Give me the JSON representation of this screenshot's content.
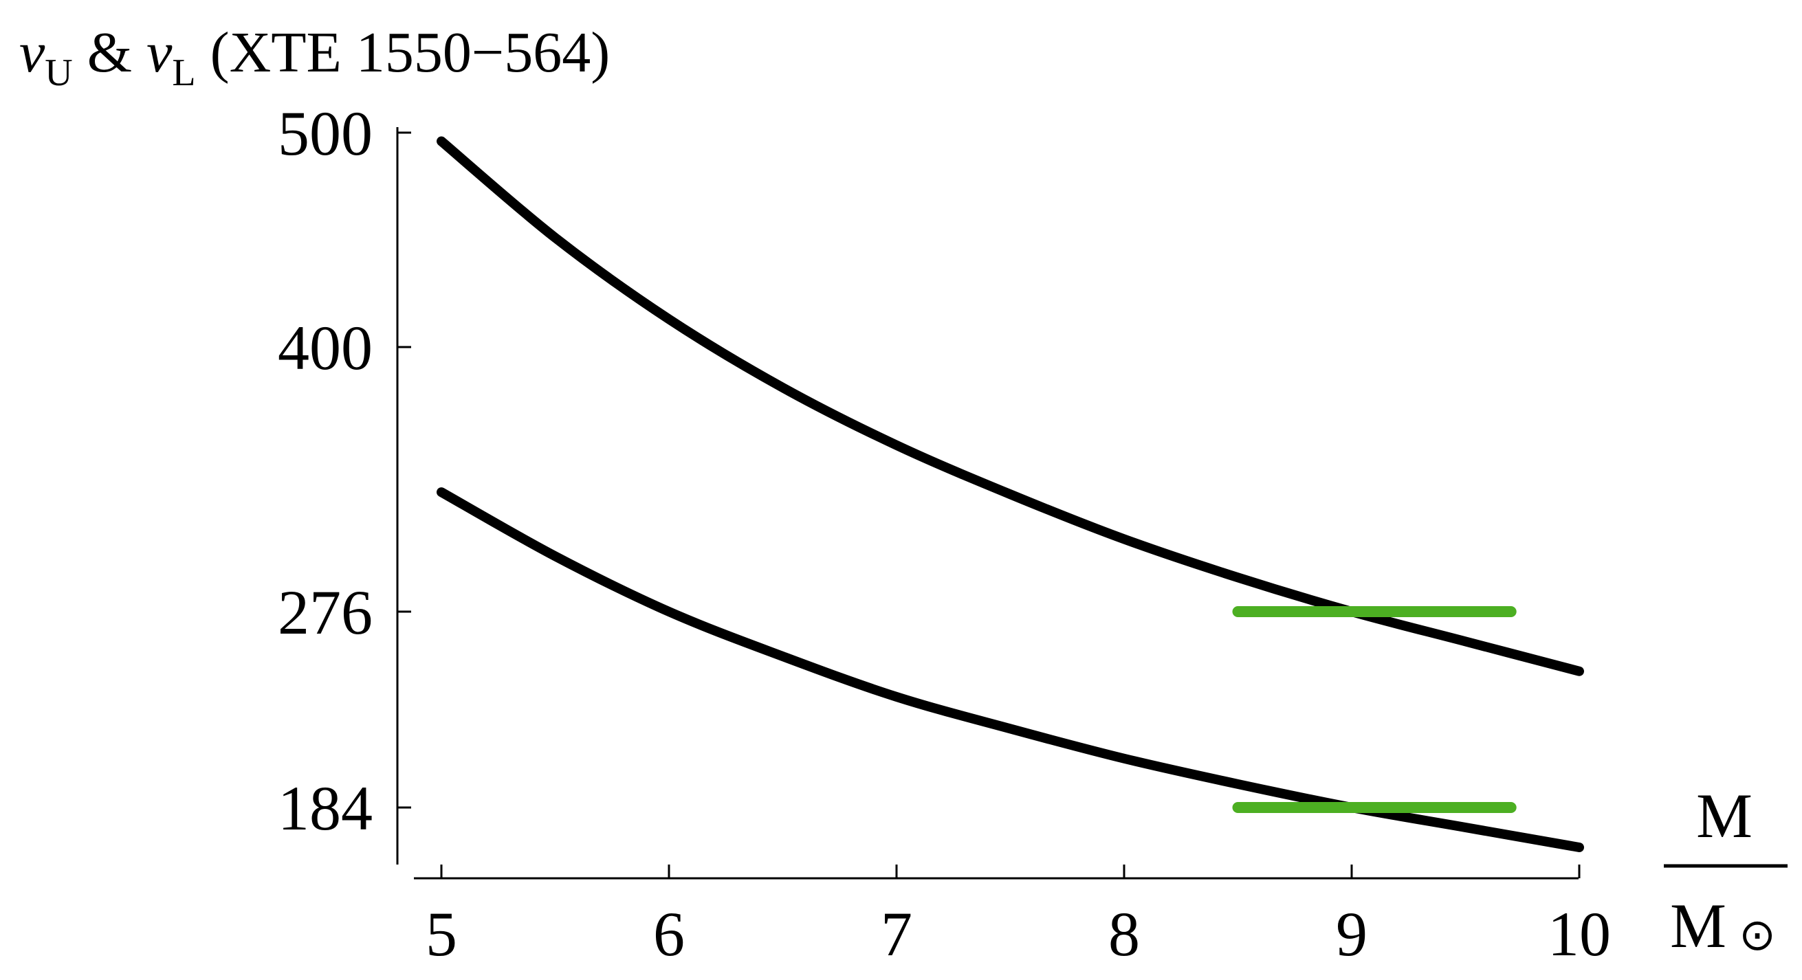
{
  "chart_data": {
    "type": "line",
    "title": {
      "nu": "ν",
      "upper_sub": "U",
      "amp": " & ",
      "lower_sub": "L",
      "rest": " (XTE 1550−564)"
    },
    "xlabel": {
      "numerator": "M",
      "denominator": "M",
      "denominator_symbol": "⊙"
    },
    "xlim": [
      4.9,
      10.0
    ],
    "ylim": [
      166,
      504
    ],
    "xticks": [
      5,
      6,
      7,
      8,
      9,
      10
    ],
    "yticks": [
      184,
      276,
      400,
      500
    ],
    "series": [
      {
        "role": "upper-curve",
        "color": "#000000",
        "x": [
          5.0,
          5.5,
          6.0,
          6.5,
          7.0,
          7.5,
          8.0,
          8.5,
          9.0,
          9.5,
          10.0
        ],
        "y": [
          496,
          451,
          413,
          381,
          354,
          331,
          310,
          292,
          276,
          262,
          248
        ]
      },
      {
        "role": "lower-curve",
        "color": "#000000",
        "x": [
          5.0,
          5.5,
          6.0,
          6.5,
          7.0,
          7.5,
          8.0,
          8.5,
          9.0,
          9.5,
          10.0
        ],
        "y": [
          332,
          302,
          276,
          255,
          236,
          221,
          207,
          195,
          184,
          175,
          166
        ]
      }
    ],
    "bands": [
      {
        "role": "upper-frequency-band",
        "x": [
          8.5,
          9.7
        ],
        "y": 276,
        "color": "#4caf22"
      },
      {
        "role": "lower-frequency-band",
        "x": [
          8.5,
          9.7
        ],
        "y": 184,
        "color": "#4caf22"
      }
    ]
  }
}
